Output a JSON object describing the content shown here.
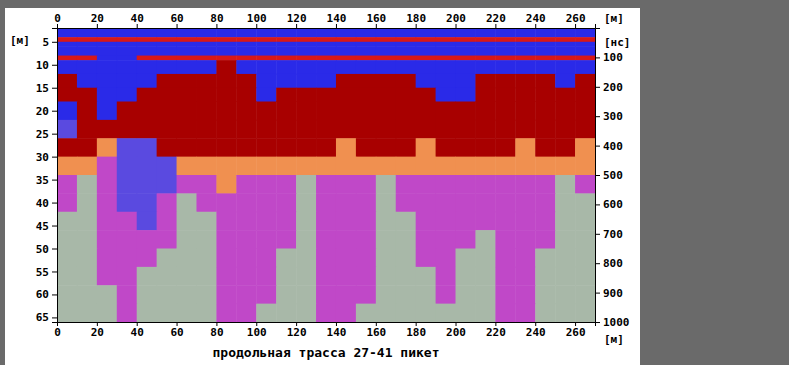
{
  "chart_data": {
    "type": "heatmap",
    "title": "продольная трасса 27-41 пикет",
    "xlabel": "[м]",
    "ylabel": "[м]",
    "y2label": "[нс]",
    "xlim": [
      0,
      270
    ],
    "xticks": [
      0,
      20,
      40,
      60,
      80,
      100,
      120,
      140,
      160,
      180,
      200,
      220,
      240,
      260
    ],
    "ylim": [
      2,
      66
    ],
    "yticks": [
      5,
      10,
      15,
      20,
      25,
      30,
      35,
      40,
      45,
      50,
      55,
      60,
      65
    ],
    "y2lim": [
      0,
      1000
    ],
    "y2ticks": [
      100,
      200,
      300,
      400,
      500,
      600,
      700,
      800,
      900,
      1000
    ],
    "x_edges": [
      0,
      10,
      20,
      30,
      40,
      50,
      60,
      70,
      80,
      90,
      100,
      110,
      120,
      130,
      140,
      150,
      160,
      170,
      180,
      190,
      200,
      210,
      220,
      230,
      240,
      250,
      260,
      270
    ],
    "y_edges": [
      2,
      4,
      5,
      6,
      8,
      9,
      12,
      15,
      18,
      22,
      26,
      30,
      34,
      38,
      42,
      46,
      50,
      54,
      58,
      62,
      66
    ],
    "colors": [
      "#2a2ae8",
      "#d81818",
      "#a80000",
      "#f09050",
      "#c048c8",
      "#a8b8a8",
      "#5a4ae0"
    ],
    "cells": [
      [
        0,
        0,
        0,
        0,
        0,
        0,
        0,
        0,
        0,
        0,
        0,
        0,
        0,
        0,
        0,
        0,
        0,
        0,
        0,
        0,
        0,
        0,
        0,
        0,
        0,
        0,
        0
      ],
      [
        1,
        1,
        1,
        1,
        1,
        1,
        1,
        1,
        1,
        1,
        1,
        1,
        1,
        1,
        1,
        1,
        1,
        1,
        1,
        1,
        1,
        1,
        1,
        1,
        1,
        1,
        1
      ],
      [
        0,
        0,
        0,
        0,
        0,
        0,
        0,
        0,
        0,
        0,
        0,
        0,
        0,
        0,
        0,
        0,
        0,
        0,
        0,
        0,
        0,
        0,
        0,
        0,
        0,
        0,
        0
      ],
      [
        0,
        0,
        0,
        0,
        0,
        0,
        0,
        0,
        0,
        0,
        0,
        0,
        0,
        0,
        0,
        0,
        0,
        0,
        0,
        0,
        0,
        0,
        0,
        0,
        0,
        0,
        0
      ],
      [
        1,
        1,
        0,
        0,
        1,
        1,
        1,
        1,
        1,
        1,
        1,
        1,
        1,
        1,
        1,
        1,
        1,
        1,
        1,
        1,
        1,
        1,
        1,
        1,
        1,
        1,
        1
      ],
      [
        0,
        0,
        0,
        0,
        0,
        0,
        0,
        0,
        2,
        0,
        0,
        0,
        0,
        0,
        0,
        0,
        0,
        0,
        0,
        0,
        0,
        0,
        0,
        0,
        0,
        0,
        0
      ],
      [
        2,
        0,
        0,
        0,
        0,
        2,
        2,
        2,
        2,
        2,
        0,
        0,
        0,
        0,
        2,
        2,
        2,
        2,
        0,
        0,
        0,
        2,
        2,
        2,
        2,
        0,
        2
      ],
      [
        2,
        2,
        0,
        0,
        2,
        2,
        2,
        2,
        2,
        2,
        0,
        2,
        2,
        2,
        2,
        2,
        2,
        2,
        2,
        0,
        0,
        2,
        2,
        2,
        2,
        2,
        2
      ],
      [
        0,
        2,
        0,
        2,
        2,
        2,
        2,
        2,
        2,
        2,
        2,
        2,
        2,
        2,
        2,
        2,
        2,
        2,
        2,
        2,
        2,
        2,
        2,
        2,
        2,
        2,
        2
      ],
      [
        6,
        2,
        2,
        2,
        2,
        2,
        2,
        2,
        2,
        2,
        2,
        2,
        2,
        2,
        2,
        2,
        2,
        2,
        2,
        2,
        2,
        2,
        2,
        2,
        2,
        2,
        2
      ],
      [
        2,
        2,
        3,
        6,
        6,
        2,
        2,
        2,
        2,
        2,
        2,
        2,
        2,
        2,
        3,
        2,
        2,
        2,
        3,
        2,
        2,
        2,
        2,
        3,
        2,
        2,
        3
      ],
      [
        3,
        3,
        4,
        6,
        6,
        6,
        3,
        3,
        3,
        3,
        3,
        3,
        3,
        3,
        3,
        3,
        3,
        3,
        3,
        3,
        3,
        3,
        3,
        3,
        3,
        3,
        3
      ],
      [
        4,
        5,
        4,
        6,
        6,
        6,
        4,
        4,
        3,
        4,
        4,
        4,
        5,
        4,
        4,
        4,
        5,
        4,
        4,
        4,
        4,
        4,
        4,
        4,
        4,
        5,
        4
      ],
      [
        4,
        5,
        4,
        6,
        6,
        4,
        5,
        4,
        4,
        4,
        4,
        4,
        5,
        4,
        4,
        4,
        5,
        4,
        4,
        4,
        4,
        4,
        4,
        4,
        4,
        5,
        5
      ],
      [
        5,
        5,
        4,
        4,
        6,
        4,
        5,
        5,
        4,
        4,
        4,
        4,
        5,
        4,
        4,
        4,
        5,
        5,
        4,
        4,
        4,
        4,
        4,
        4,
        4,
        5,
        5
      ],
      [
        5,
        5,
        4,
        4,
        4,
        4,
        5,
        5,
        4,
        4,
        4,
        4,
        5,
        4,
        4,
        4,
        5,
        5,
        4,
        4,
        4,
        5,
        4,
        4,
        4,
        5,
        5
      ],
      [
        5,
        5,
        4,
        4,
        4,
        5,
        5,
        5,
        4,
        4,
        4,
        5,
        5,
        4,
        4,
        4,
        5,
        5,
        4,
        4,
        5,
        5,
        4,
        4,
        5,
        5,
        5
      ],
      [
        5,
        5,
        4,
        4,
        5,
        5,
        5,
        5,
        4,
        4,
        4,
        5,
        5,
        4,
        4,
        4,
        5,
        5,
        5,
        4,
        5,
        5,
        4,
        4,
        5,
        5,
        5
      ],
      [
        5,
        5,
        5,
        4,
        5,
        5,
        5,
        5,
        4,
        4,
        4,
        5,
        5,
        4,
        4,
        4,
        5,
        5,
        5,
        4,
        5,
        5,
        4,
        4,
        5,
        5,
        5
      ],
      [
        5,
        5,
        5,
        4,
        5,
        5,
        5,
        5,
        4,
        4,
        5,
        5,
        5,
        4,
        4,
        5,
        5,
        5,
        5,
        5,
        5,
        5,
        4,
        4,
        5,
        5,
        5
      ]
    ]
  }
}
